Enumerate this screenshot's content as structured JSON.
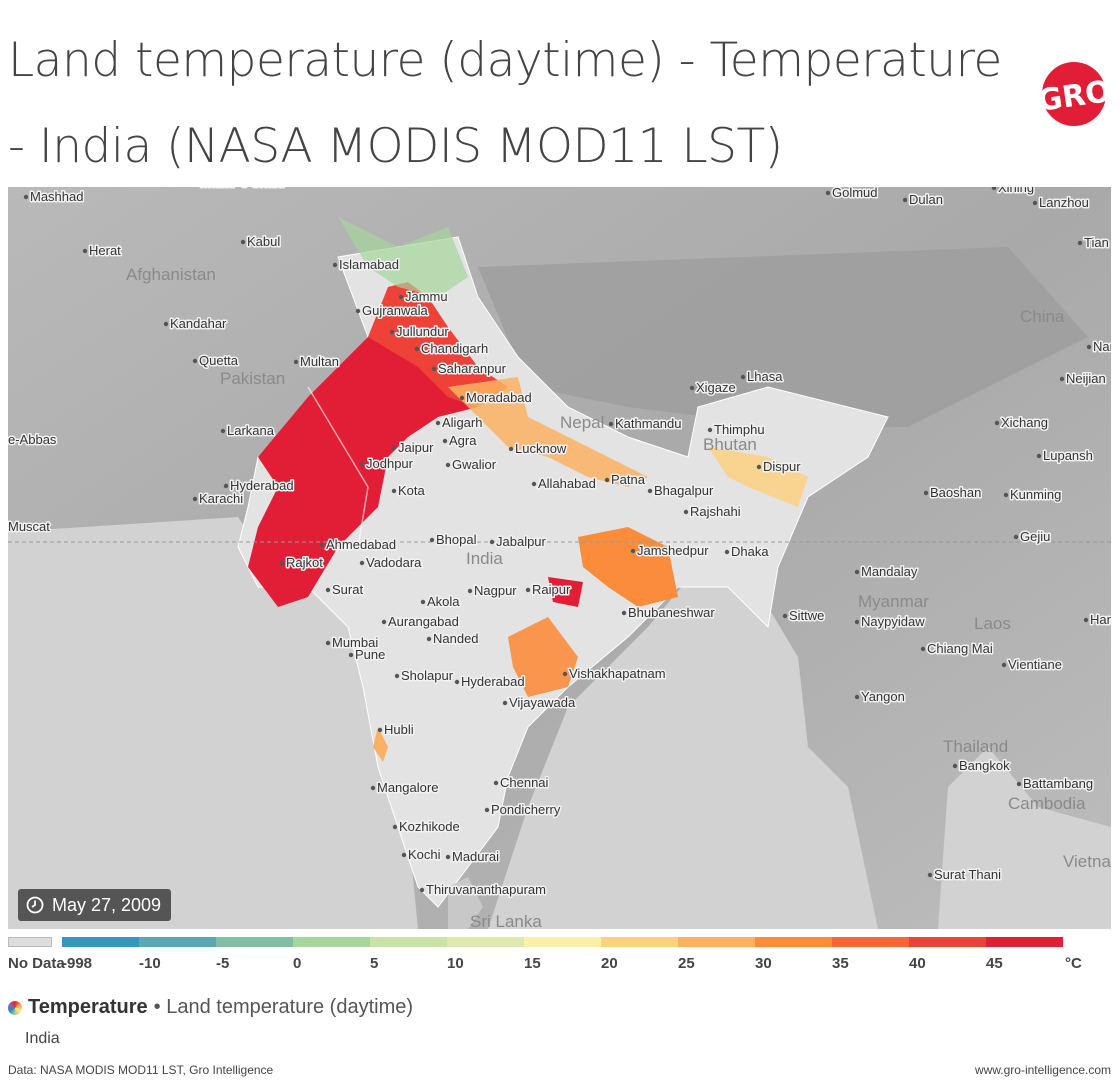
{
  "title": "Land temperature (daytime) - Temperature - India (NASA MODIS MOD11 LST)",
  "logo_text": "GRO",
  "date": "May 27, 2009",
  "legend": {
    "no_data_label": "No Data",
    "unit": "°C",
    "ticks": [
      "-998",
      "-10",
      "-5",
      "0",
      "5",
      "10",
      "15",
      "20",
      "25",
      "30",
      "35",
      "40",
      "45"
    ],
    "colors": [
      "#3a95bd",
      "#5ba7b5",
      "#80bfa6",
      "#a5d69b",
      "#c7e3a6",
      "#dde9ae",
      "#fbf0a7",
      "#fdd181",
      "#fbb163",
      "#fb8c3b",
      "#f5673a",
      "#ee4238",
      "#e21d36"
    ]
  },
  "series": {
    "metric": "Temperature",
    "item": "• Land temperature (daytime)",
    "region": "India"
  },
  "footer": {
    "source": "Data: NASA MODIS MOD11 LST, Gro Intelligence",
    "website": "www.gro-intelligence.com"
  },
  "map": {
    "countries": [
      "Afghanistan",
      "Pakistan",
      "Nepal",
      "Bhutan",
      "India",
      "China",
      "Myanmar",
      "Laos",
      "Thailand",
      "Cambodia",
      "Vietnam",
      "Sri Lanka"
    ],
    "cities": [
      "Mashhad",
      "Mazar-e Sharif",
      "Herat",
      "Kabul",
      "Kandahar",
      "Quetta",
      "Multan",
      "Larkana",
      "Karachi",
      "Hyderabad",
      "Muscat",
      "Islamabad",
      "Jammu",
      "Gujranwala",
      "Jullundur",
      "Chandigarh",
      "Saharanpur",
      "Moradabad",
      "Aligarh",
      "Agra",
      "Jaipur",
      "Jodhpur",
      "Kota",
      "Gwalior",
      "Lucknow",
      "Allahabad",
      "Patna",
      "Bhagalpur",
      "Rajshahi",
      "Dhaka",
      "Jamshedpur",
      "Bhopal",
      "Jabalpur",
      "Ahmedabad",
      "Vadodara",
      "Rajkot",
      "Surat",
      "Akola",
      "Nagpur",
      "Raipur",
      "Bhubaneshwar",
      "Aurangabad",
      "Nanded",
      "Mumbai",
      "Pune",
      "Sholapur",
      "Hyderabad",
      "Vishakhapatnam",
      "Vijayawada",
      "Hubli",
      "Chennai",
      "Mangalore",
      "Pondicherry",
      "Kozhikode",
      "Kochi",
      "Madurai",
      "Thiruvananthapuram",
      "Kathmandu",
      "Thimphu",
      "Xigaze",
      "Lhasa",
      "Golmud",
      "Dulan",
      "Xining",
      "Lanzhou",
      "Tian",
      "Xichang",
      "Lupansh",
      "Baoshan",
      "Kunming",
      "Gejiu",
      "Mandalay",
      "Naypyidaw",
      "Sittwe",
      "Chiang Mai",
      "Vientiane",
      "Yangon",
      "Bangkok",
      "Battambang",
      "Surat Thani",
      "Nan",
      "Neijian",
      "Hano",
      "Dispur",
      "e-Abbas"
    ]
  }
}
